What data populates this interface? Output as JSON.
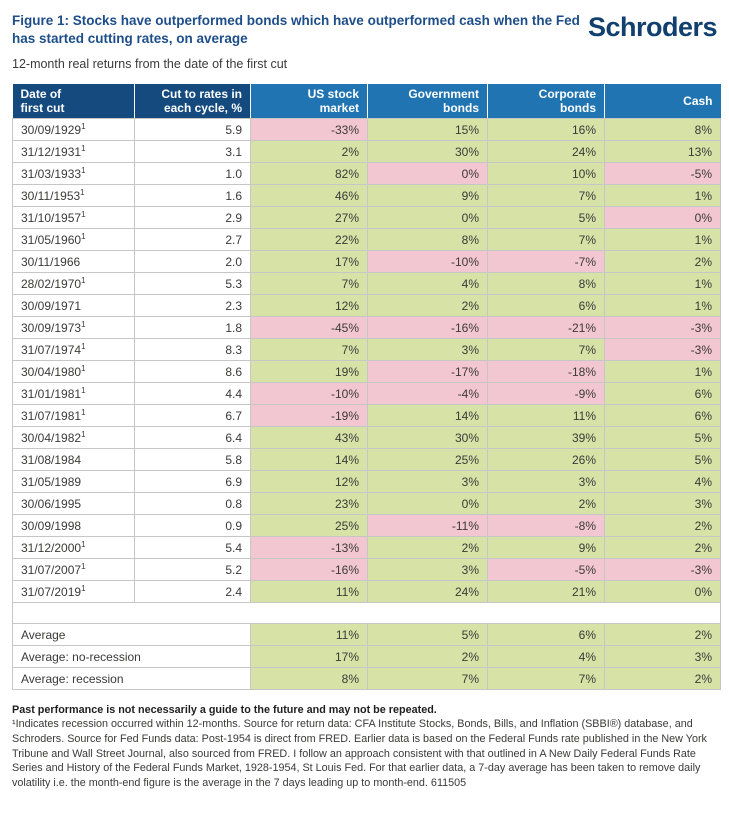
{
  "page": {
    "title": "Figure 1: Stocks have outperformed bonds which have outperformed cash when the Fed has started cutting rates, on average",
    "subtitle": "12-month real returns from the date of the first cut",
    "logo_text": "Schroders"
  },
  "colors": {
    "title_blue": "#1d4e8a",
    "logo_blue": "#11406f",
    "header_dark_blue": "#154a7f",
    "header_light_blue": "#2174b2",
    "positive_green": "#d6e2a6",
    "negative_pink": "#f3c7d1"
  },
  "table": {
    "columns": [
      "Date of\nfirst cut",
      "Cut to rates in\neach cycle, %",
      "US stock\nmarket",
      "Government\nbonds",
      "Corporate\nbonds",
      "Cash"
    ],
    "footnote_marker": "1",
    "rows": [
      {
        "date": "30/09/1929",
        "recession": true,
        "cut_to_rates": "5.9",
        "values": [
          {
            "v": "-33%",
            "tone": "negative"
          },
          {
            "v": "15%",
            "tone": "positive"
          },
          {
            "v": "16%",
            "tone": "positive"
          },
          {
            "v": "8%",
            "tone": "positive"
          }
        ]
      },
      {
        "date": "31/12/1931",
        "recession": true,
        "cut_to_rates": "3.1",
        "values": [
          {
            "v": "2%",
            "tone": "positive"
          },
          {
            "v": "30%",
            "tone": "positive"
          },
          {
            "v": "24%",
            "tone": "positive"
          },
          {
            "v": "13%",
            "tone": "positive"
          }
        ]
      },
      {
        "date": "31/03/1933",
        "recession": true,
        "cut_to_rates": "1.0",
        "values": [
          {
            "v": "82%",
            "tone": "positive"
          },
          {
            "v": "0%",
            "tone": "negative"
          },
          {
            "v": "10%",
            "tone": "positive"
          },
          {
            "v": "-5%",
            "tone": "negative"
          }
        ]
      },
      {
        "date": "30/11/1953",
        "recession": true,
        "cut_to_rates": "1.6",
        "values": [
          {
            "v": "46%",
            "tone": "positive"
          },
          {
            "v": "9%",
            "tone": "positive"
          },
          {
            "v": "7%",
            "tone": "positive"
          },
          {
            "v": "1%",
            "tone": "positive"
          }
        ]
      },
      {
        "date": "31/10/1957",
        "recession": true,
        "cut_to_rates": "2.9",
        "values": [
          {
            "v": "27%",
            "tone": "positive"
          },
          {
            "v": "0%",
            "tone": "positive"
          },
          {
            "v": "5%",
            "tone": "positive"
          },
          {
            "v": "0%",
            "tone": "negative"
          }
        ]
      },
      {
        "date": "31/05/1960",
        "recession": true,
        "cut_to_rates": "2.7",
        "values": [
          {
            "v": "22%",
            "tone": "positive"
          },
          {
            "v": "8%",
            "tone": "positive"
          },
          {
            "v": "7%",
            "tone": "positive"
          },
          {
            "v": "1%",
            "tone": "positive"
          }
        ]
      },
      {
        "date": "30/11/1966",
        "recession": false,
        "cut_to_rates": "2.0",
        "values": [
          {
            "v": "17%",
            "tone": "positive"
          },
          {
            "v": "-10%",
            "tone": "negative"
          },
          {
            "v": "-7%",
            "tone": "negative"
          },
          {
            "v": "2%",
            "tone": "positive"
          }
        ]
      },
      {
        "date": "28/02/1970",
        "recession": true,
        "cut_to_rates": "5.3",
        "values": [
          {
            "v": "7%",
            "tone": "positive"
          },
          {
            "v": "4%",
            "tone": "positive"
          },
          {
            "v": "8%",
            "tone": "positive"
          },
          {
            "v": "1%",
            "tone": "positive"
          }
        ]
      },
      {
        "date": "30/09/1971",
        "recession": false,
        "cut_to_rates": "2.3",
        "values": [
          {
            "v": "12%",
            "tone": "positive"
          },
          {
            "v": "2%",
            "tone": "positive"
          },
          {
            "v": "6%",
            "tone": "positive"
          },
          {
            "v": "1%",
            "tone": "positive"
          }
        ]
      },
      {
        "date": "30/09/1973",
        "recession": true,
        "cut_to_rates": "1.8",
        "values": [
          {
            "v": "-45%",
            "tone": "negative"
          },
          {
            "v": "-16%",
            "tone": "negative"
          },
          {
            "v": "-21%",
            "tone": "negative"
          },
          {
            "v": "-3%",
            "tone": "negative"
          }
        ]
      },
      {
        "date": "31/07/1974",
        "recession": true,
        "cut_to_rates": "8.3",
        "values": [
          {
            "v": "7%",
            "tone": "positive"
          },
          {
            "v": "3%",
            "tone": "positive"
          },
          {
            "v": "7%",
            "tone": "positive"
          },
          {
            "v": "-3%",
            "tone": "negative"
          }
        ]
      },
      {
        "date": "30/04/1980",
        "recession": true,
        "cut_to_rates": "8.6",
        "values": [
          {
            "v": "19%",
            "tone": "positive"
          },
          {
            "v": "-17%",
            "tone": "negative"
          },
          {
            "v": "-18%",
            "tone": "negative"
          },
          {
            "v": "1%",
            "tone": "positive"
          }
        ]
      },
      {
        "date": "31/01/1981",
        "recession": true,
        "cut_to_rates": "4.4",
        "values": [
          {
            "v": "-10%",
            "tone": "negative"
          },
          {
            "v": "-4%",
            "tone": "negative"
          },
          {
            "v": "-9%",
            "tone": "negative"
          },
          {
            "v": "6%",
            "tone": "positive"
          }
        ]
      },
      {
        "date": "31/07/1981",
        "recession": true,
        "cut_to_rates": "6.7",
        "values": [
          {
            "v": "-19%",
            "tone": "negative"
          },
          {
            "v": "14%",
            "tone": "positive"
          },
          {
            "v": "11%",
            "tone": "positive"
          },
          {
            "v": "6%",
            "tone": "positive"
          }
        ]
      },
      {
        "date": "30/04/1982",
        "recession": true,
        "cut_to_rates": "6.4",
        "values": [
          {
            "v": "43%",
            "tone": "positive"
          },
          {
            "v": "30%",
            "tone": "positive"
          },
          {
            "v": "39%",
            "tone": "positive"
          },
          {
            "v": "5%",
            "tone": "positive"
          }
        ]
      },
      {
        "date": "31/08/1984",
        "recession": false,
        "cut_to_rates": "5.8",
        "values": [
          {
            "v": "14%",
            "tone": "positive"
          },
          {
            "v": "25%",
            "tone": "positive"
          },
          {
            "v": "26%",
            "tone": "positive"
          },
          {
            "v": "5%",
            "tone": "positive"
          }
        ]
      },
      {
        "date": "31/05/1989",
        "recession": false,
        "cut_to_rates": "6.9",
        "values": [
          {
            "v": "12%",
            "tone": "positive"
          },
          {
            "v": "3%",
            "tone": "positive"
          },
          {
            "v": "3%",
            "tone": "positive"
          },
          {
            "v": "4%",
            "tone": "positive"
          }
        ]
      },
      {
        "date": "30/06/1995",
        "recession": false,
        "cut_to_rates": "0.8",
        "values": [
          {
            "v": "23%",
            "tone": "positive"
          },
          {
            "v": "0%",
            "tone": "positive"
          },
          {
            "v": "2%",
            "tone": "positive"
          },
          {
            "v": "3%",
            "tone": "positive"
          }
        ]
      },
      {
        "date": "30/09/1998",
        "recession": false,
        "cut_to_rates": "0.9",
        "values": [
          {
            "v": "25%",
            "tone": "positive"
          },
          {
            "v": "-11%",
            "tone": "negative"
          },
          {
            "v": "-8%",
            "tone": "negative"
          },
          {
            "v": "2%",
            "tone": "positive"
          }
        ]
      },
      {
        "date": "31/12/2000",
        "recession": true,
        "cut_to_rates": "5.4",
        "values": [
          {
            "v": "-13%",
            "tone": "negative"
          },
          {
            "v": "2%",
            "tone": "positive"
          },
          {
            "v": "9%",
            "tone": "positive"
          },
          {
            "v": "2%",
            "tone": "positive"
          }
        ]
      },
      {
        "date": "31/07/2007",
        "recession": true,
        "cut_to_rates": "5.2",
        "values": [
          {
            "v": "-16%",
            "tone": "negative"
          },
          {
            "v": "3%",
            "tone": "positive"
          },
          {
            "v": "-5%",
            "tone": "negative"
          },
          {
            "v": "-3%",
            "tone": "negative"
          }
        ]
      },
      {
        "date": "31/07/2019",
        "recession": true,
        "cut_to_rates": "2.4",
        "values": [
          {
            "v": "11%",
            "tone": "positive"
          },
          {
            "v": "24%",
            "tone": "positive"
          },
          {
            "v": "21%",
            "tone": "positive"
          },
          {
            "v": "0%",
            "tone": "positive"
          }
        ]
      }
    ],
    "summary_rows": [
      {
        "label": "Average",
        "values": [
          "11%",
          "5%",
          "6%",
          "2%"
        ]
      },
      {
        "label": "Average: no-recession",
        "values": [
          "17%",
          "2%",
          "4%",
          "3%"
        ]
      },
      {
        "label": "Average: recession",
        "values": [
          "8%",
          "7%",
          "7%",
          "2%"
        ]
      }
    ]
  },
  "footnote": {
    "warning": "Past performance is not necessarily a guide to the future and may not be repeated.",
    "body": "¹Indicates recession occurred within 12-months. Source for return data: CFA Institute Stocks, Bonds, Bills, and Inflation (SBBI®) database, and Schroders. Source for Fed Funds data: Post-1954 is direct from FRED. Earlier data is based on the Federal Funds rate published in the New York Tribune and Wall Street Journal, also sourced from FRED. I follow an approach consistent with that outlined in A New Daily Federal Funds Rate Series and History of the Federal Funds Market, 1928-1954, St Louis Fed. For that earlier data, a 7-day average has been taken to remove daily volatility i.e. the month-end figure is the average in the 7 days leading up to month-end. 611505"
  }
}
